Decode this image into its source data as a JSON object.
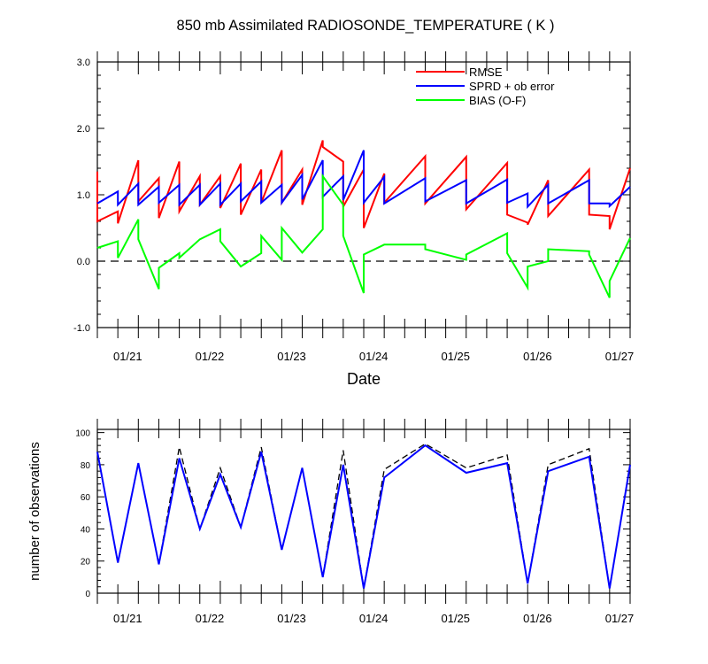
{
  "title": "850 mb Assimilated RADIOSONDE_TEMPERATURE ( K )",
  "chart_data": [
    {
      "type": "line",
      "title": "850 mb Assimilated RADIOSONDE_TEMPERATURE ( K )",
      "xlabel": "Date",
      "ylabel": "",
      "x_unit": "days from 2000-01-20 00Z (axis labels show MM/DD)",
      "xlim": [
        0.5,
        7.0
      ],
      "ylim": [
        -1.0,
        3.0
      ],
      "yticks": [
        -1.0,
        0.0,
        1.0,
        2.0,
        3.0
      ],
      "ytick_labels": [
        "-1.0",
        "0.0",
        "1.0",
        "2.0",
        "3.0"
      ],
      "xticks": [
        1,
        2,
        3,
        4,
        5,
        6,
        7
      ],
      "xtick_labels": [
        "01/21",
        "01/22",
        "01/23",
        "01/24",
        "01/25",
        "01/26",
        "01/27"
      ],
      "zero_line": "dashed",
      "legend_position": "top-right",
      "series": [
        {
          "name": "RMSE",
          "color": "#ff0000",
          "points": [
            [
              0.5,
              1.35
            ],
            [
              0.5,
              0.6
            ],
            [
              0.75,
              0.75
            ],
            [
              0.75,
              0.57
            ],
            [
              1.0,
              1.52
            ],
            [
              1.0,
              0.9
            ],
            [
              1.25,
              1.25
            ],
            [
              1.25,
              0.65
            ],
            [
              1.5,
              1.5
            ],
            [
              1.5,
              0.75
            ],
            [
              1.75,
              1.28
            ],
            [
              1.75,
              0.85
            ],
            [
              2.0,
              1.28
            ],
            [
              2.0,
              0.8
            ],
            [
              2.25,
              1.47
            ],
            [
              2.25,
              0.7
            ],
            [
              2.5,
              1.38
            ],
            [
              2.5,
              0.88
            ],
            [
              2.75,
              1.67
            ],
            [
              2.75,
              0.88
            ],
            [
              3.0,
              1.38
            ],
            [
              3.0,
              0.85
            ],
            [
              3.25,
              1.82
            ],
            [
              3.25,
              1.72
            ],
            [
              3.5,
              1.5
            ],
            [
              3.5,
              0.82
            ],
            [
              3.75,
              1.38
            ],
            [
              3.75,
              0.5
            ],
            [
              4.0,
              1.32
            ],
            [
              4.0,
              0.88
            ],
            [
              4.5,
              1.58
            ],
            [
              4.5,
              0.87
            ],
            [
              5.0,
              1.57
            ],
            [
              5.0,
              0.78
            ],
            [
              5.5,
              1.48
            ],
            [
              5.5,
              0.7
            ],
            [
              5.75,
              0.58
            ],
            [
              5.75,
              0.55
            ],
            [
              6.0,
              1.22
            ],
            [
              6.0,
              0.68
            ],
            [
              6.5,
              1.38
            ],
            [
              6.5,
              0.7
            ],
            [
              6.75,
              0.68
            ],
            [
              6.75,
              0.48
            ],
            [
              7.0,
              1.4
            ]
          ]
        },
        {
          "name": "SPRD + ob error",
          "color": "#0000ff",
          "points": [
            [
              0.5,
              0.87
            ],
            [
              0.75,
              1.05
            ],
            [
              0.75,
              0.85
            ],
            [
              1.0,
              1.17
            ],
            [
              1.0,
              0.85
            ],
            [
              1.25,
              1.12
            ],
            [
              1.25,
              0.88
            ],
            [
              1.5,
              1.15
            ],
            [
              1.5,
              0.85
            ],
            [
              1.75,
              1.15
            ],
            [
              1.75,
              0.85
            ],
            [
              2.0,
              1.17
            ],
            [
              2.0,
              0.85
            ],
            [
              2.25,
              1.17
            ],
            [
              2.25,
              0.9
            ],
            [
              2.5,
              1.2
            ],
            [
              2.5,
              0.88
            ],
            [
              2.75,
              1.15
            ],
            [
              2.75,
              0.88
            ],
            [
              3.0,
              1.3
            ],
            [
              3.0,
              0.93
            ],
            [
              3.25,
              1.52
            ],
            [
              3.25,
              0.97
            ],
            [
              3.5,
              1.28
            ],
            [
              3.5,
              0.92
            ],
            [
              3.75,
              1.67
            ],
            [
              3.75,
              0.88
            ],
            [
              4.0,
              1.27
            ],
            [
              4.0,
              0.87
            ],
            [
              4.5,
              1.25
            ],
            [
              4.5,
              0.9
            ],
            [
              5.0,
              1.22
            ],
            [
              5.0,
              0.87
            ],
            [
              5.5,
              1.23
            ],
            [
              5.5,
              0.88
            ],
            [
              5.75,
              1.02
            ],
            [
              5.75,
              0.82
            ],
            [
              6.0,
              1.15
            ],
            [
              6.0,
              0.87
            ],
            [
              6.5,
              1.22
            ],
            [
              6.5,
              0.87
            ],
            [
              6.75,
              0.87
            ],
            [
              6.75,
              0.83
            ],
            [
              7.0,
              1.12
            ]
          ]
        },
        {
          "name": "BIAS (O-F)",
          "color": "#00ff00",
          "points": [
            [
              0.5,
              0.2
            ],
            [
              0.75,
              0.3
            ],
            [
              0.75,
              0.05
            ],
            [
              1.0,
              0.63
            ],
            [
              1.0,
              0.33
            ],
            [
              1.25,
              -0.42
            ],
            [
              1.25,
              -0.1
            ],
            [
              1.5,
              0.12
            ],
            [
              1.5,
              0.05
            ],
            [
              1.75,
              0.33
            ],
            [
              2.0,
              0.48
            ],
            [
              2.0,
              0.3
            ],
            [
              2.25,
              -0.08
            ],
            [
              2.5,
              0.12
            ],
            [
              2.5,
              0.38
            ],
            [
              2.75,
              0.02
            ],
            [
              2.75,
              0.5
            ],
            [
              3.0,
              0.13
            ],
            [
              3.25,
              0.48
            ],
            [
              3.25,
              1.28
            ],
            [
              3.5,
              0.85
            ],
            [
              3.5,
              0.38
            ],
            [
              3.75,
              -0.48
            ],
            [
              3.75,
              0.1
            ],
            [
              4.0,
              0.25
            ],
            [
              4.5,
              0.25
            ],
            [
              4.5,
              0.18
            ],
            [
              5.0,
              0.02
            ],
            [
              5.0,
              0.1
            ],
            [
              5.5,
              0.42
            ],
            [
              5.5,
              0.12
            ],
            [
              5.75,
              -0.4
            ],
            [
              5.75,
              -0.08
            ],
            [
              6.0,
              0.0
            ],
            [
              6.0,
              0.18
            ],
            [
              6.5,
              0.15
            ],
            [
              6.5,
              0.1
            ],
            [
              6.75,
              -0.55
            ],
            [
              6.75,
              -0.3
            ],
            [
              7.0,
              0.35
            ]
          ]
        }
      ]
    },
    {
      "type": "line",
      "title": "",
      "xlabel": "",
      "ylabel": "number of observations",
      "xlim": [
        0.5,
        7.0
      ],
      "ylim": [
        0,
        102
      ],
      "yticks": [
        0,
        20,
        40,
        60,
        80,
        100
      ],
      "ytick_labels": [
        "0",
        "20",
        "40",
        "60",
        "80",
        "100"
      ],
      "xticks": [
        1,
        2,
        3,
        4,
        5,
        6,
        7
      ],
      "xtick_labels": [
        "01/21",
        "01/22",
        "01/23",
        "01/24",
        "01/25",
        "01/26",
        "01/27"
      ],
      "series": [
        {
          "color": "#000000",
          "dashed": true,
          "points": [
            [
              0.5,
              88
            ],
            [
              0.75,
              19
            ],
            [
              1.0,
              81
            ],
            [
              1.25,
              18
            ],
            [
              1.5,
              91
            ],
            [
              1.75,
              40
            ],
            [
              2.0,
              78
            ],
            [
              2.25,
              41
            ],
            [
              2.5,
              91
            ],
            [
              2.75,
              27
            ],
            [
              3.0,
              78
            ],
            [
              3.25,
              10
            ],
            [
              3.5,
              89
            ],
            [
              3.75,
              3
            ],
            [
              4.0,
              77
            ],
            [
              4.5,
              93
            ],
            [
              5.0,
              78
            ],
            [
              5.5,
              86
            ],
            [
              5.75,
              6
            ],
            [
              6.0,
              80
            ],
            [
              6.5,
              90
            ],
            [
              6.75,
              3
            ],
            [
              7.0,
              80
            ]
          ]
        },
        {
          "color": "#0000ff",
          "dashed": false,
          "points": [
            [
              0.5,
              88
            ],
            [
              0.75,
              19
            ],
            [
              1.0,
              81
            ],
            [
              1.25,
              18
            ],
            [
              1.5,
              84
            ],
            [
              1.75,
              40
            ],
            [
              2.0,
              74
            ],
            [
              2.25,
              41
            ],
            [
              2.5,
              88
            ],
            [
              2.75,
              27
            ],
            [
              3.0,
              78
            ],
            [
              3.25,
              10
            ],
            [
              3.5,
              80
            ],
            [
              3.75,
              3
            ],
            [
              4.0,
              72
            ],
            [
              4.5,
              92
            ],
            [
              5.0,
              75
            ],
            [
              5.5,
              81
            ],
            [
              5.75,
              6
            ],
            [
              6.0,
              76
            ],
            [
              6.5,
              85
            ],
            [
              6.75,
              3
            ],
            [
              7.0,
              80
            ]
          ]
        }
      ]
    }
  ]
}
